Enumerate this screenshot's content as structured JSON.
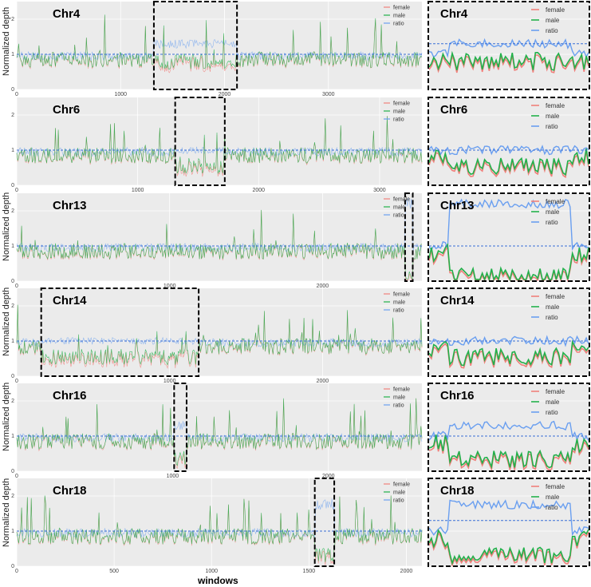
{
  "figure": {
    "ylabel": "Normalized depth",
    "xlabel": "windows"
  },
  "legend": [
    "female",
    "male",
    "ratio"
  ],
  "colors": {
    "female": "#f0807b",
    "male": "#22b04a",
    "ratio": "#6a9ff0",
    "reference": "#3b6fd6",
    "panel_bg": "#ebebeb",
    "box": "#000000"
  },
  "chart_data": [
    {
      "type": "line",
      "title": "Chr4",
      "n_windows": 3900,
      "xticks": [
        0,
        1000,
        2000,
        3000
      ],
      "yticks": [
        0,
        1,
        2
      ],
      "ylim": [
        0,
        2.5
      ],
      "highlight": [
        1320,
        2120
      ],
      "reference_line": 1.0,
      "grid": true,
      "legend_position": "top-right",
      "zoom": {
        "title": "Chr4",
        "ratio_level": 1.3,
        "male_level": 0.8,
        "female_level": 0.8,
        "ratio_reference": 1.3
      }
    },
    {
      "type": "line",
      "title": "Chr6",
      "n_windows": 3350,
      "xticks": [
        0,
        1000,
        2000,
        3000
      ],
      "yticks": [
        0,
        1,
        2
      ],
      "ylim": [
        0,
        2.5
      ],
      "highlight": [
        1310,
        1720
      ],
      "reference_line": 1.0,
      "grid": true,
      "legend_position": "top-right",
      "zoom": {
        "title": "Chr6",
        "ratio_level": 1.0,
        "male_level": 0.55,
        "female_level": 0.55,
        "ratio_reference": 1.0
      }
    },
    {
      "type": "line",
      "title": "Chr13",
      "n_windows": 2650,
      "xticks": [
        0,
        1000,
        2000
      ],
      "yticks": [
        0,
        1,
        2
      ],
      "ylim": [
        0,
        2.5
      ],
      "highlight": [
        2540,
        2590
      ],
      "reference_line": 1.0,
      "grid": true,
      "legend_position": "top-right",
      "zoom": {
        "title": "Chr13",
        "ratio_level": 2.2,
        "male_level": 0.15,
        "female_level": 0.1,
        "ratio_reference": 1.0
      }
    },
    {
      "type": "line",
      "title": "Chr14",
      "n_windows": 2650,
      "xticks": [
        0,
        1000,
        2000
      ],
      "yticks": [
        0,
        1,
        2
      ],
      "ylim": [
        0,
        2.5
      ],
      "highlight": [
        160,
        1190
      ],
      "reference_line": 1.0,
      "grid": true,
      "legend_position": "top-right",
      "zoom": {
        "title": "Chr14",
        "ratio_level": 1.0,
        "male_level": 0.55,
        "female_level": 0.55,
        "ratio_reference": 1.0
      }
    },
    {
      "type": "line",
      "title": "Chr16",
      "n_windows": 2600,
      "xticks": [
        0,
        1000,
        2000
      ],
      "yticks": [
        0,
        1,
        2
      ],
      "ylim": [
        0,
        2.5
      ],
      "highlight": [
        1010,
        1090
      ],
      "reference_line": 1.0,
      "grid": true,
      "legend_position": "top-right",
      "zoom": {
        "title": "Chr16",
        "ratio_level": 1.3,
        "male_level": 0.35,
        "female_level": 0.25,
        "ratio_reference": 1.0
      }
    },
    {
      "type": "line",
      "title": "Chr18",
      "n_windows": 2080,
      "xticks": [
        0,
        500,
        1000,
        1500,
        2000
      ],
      "yticks": [
        0,
        1,
        2
      ],
      "ylim": [
        0,
        2.5
      ],
      "highlight": [
        1530,
        1630
      ],
      "reference_line": 1.0,
      "grid": true,
      "legend_position": "top-right",
      "zoom": {
        "title": "Chr18",
        "ratio_level": 1.75,
        "male_level": 0.3,
        "female_level": 0.2,
        "ratio_reference": 1.3
      }
    }
  ]
}
